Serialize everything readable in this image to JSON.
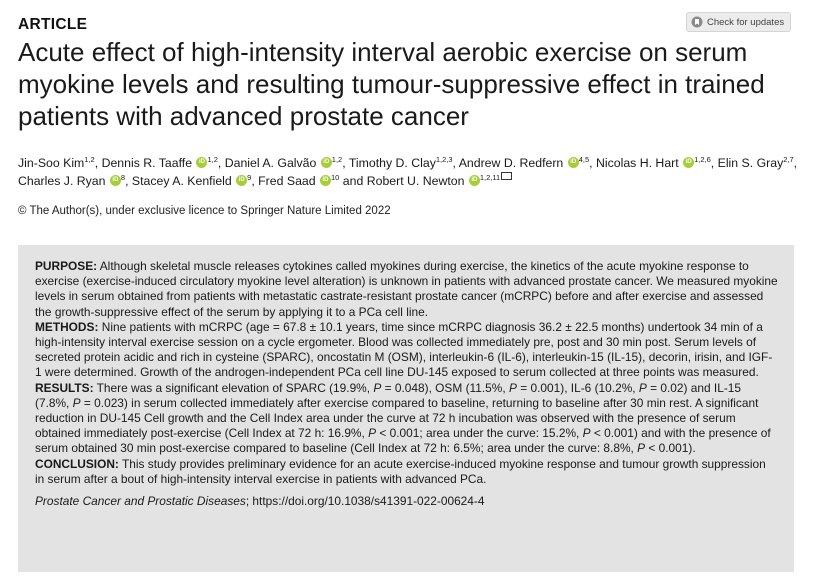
{
  "header": {
    "section_label": "ARTICLE",
    "check_updates_label": "Check for updates"
  },
  "title": "Acute effect of high-intensity interval aerobic exercise on serum myokine levels and resulting tumour-suppressive effect in trained patients with advanced prostate cancer",
  "authors": [
    {
      "name": "Jin-Soo Kim",
      "aff": "1,2",
      "orcid": false,
      "sep": ", "
    },
    {
      "name": "Dennis R. Taaffe",
      "aff": "1,2",
      "orcid": true,
      "sep": ", "
    },
    {
      "name": "Daniel A. Galvão",
      "aff": "1,2",
      "orcid": true,
      "sep": ", "
    },
    {
      "name": "Timothy D. Clay",
      "aff": "1,2,3",
      "orcid": false,
      "sep": ", "
    },
    {
      "name": "Andrew D. Redfern",
      "aff": "4,5",
      "orcid": true,
      "sep": ", "
    },
    {
      "name": "Nicolas H. Hart",
      "aff": "1,2,6",
      "orcid": true,
      "sep": ", "
    },
    {
      "name": "Elin S. Gray",
      "aff": "2,7",
      "orcid": false,
      "sep": ", "
    },
    {
      "name": "Charles J. Ryan",
      "aff": "8",
      "orcid": true,
      "sep": ", "
    },
    {
      "name": "Stacey A. Kenfield",
      "aff": "9",
      "orcid": true,
      "sep": ", "
    },
    {
      "name": "Fred Saad",
      "aff": "10",
      "orcid": true,
      "sep": " and "
    },
    {
      "name": "Robert U. Newton",
      "aff": "1,2,11",
      "orcid": true,
      "sep": ""
    }
  ],
  "copyright": "© The Author(s), under exclusive licence to Springer Nature Limited 2022",
  "abstract": {
    "purpose_label": "PURPOSE:",
    "purpose_text": " Although skeletal muscle releases cytokines called myokines during exercise, the kinetics of the acute myokine response to exercise (exercise-induced circulatory myokine level alteration) is unknown in patients with advanced prostate cancer. We measured myokine levels in serum obtained from patients with metastatic castrate-resistant prostate cancer (mCRPC) before and after exercise and assessed the growth-suppressive effect of the serum by applying it to a PCa cell line.",
    "methods_label": "METHODS:",
    "methods_text": " Nine patients with mCRPC (age = 67.8 ± 10.1 years, time since mCRPC diagnosis 36.2 ± 22.5 months) undertook 34 min of a high-intensity interval exercise session on a cycle ergometer. Blood was collected immediately pre, post and 30 min post. Serum levels of secreted protein acidic and rich in cysteine (SPARC), oncostatin M (OSM), interleukin-6 (IL-6), interleukin-15 (IL-15), decorin, irisin, and IGF-1 were determined. Growth of the androgen-independent PCa cell line DU-145 exposed to serum collected at three points was measured.",
    "results_label": "RESULTS:",
    "results_parts": [
      " There was a significant elevation of SPARC (19.9%, ",
      "P",
      " = 0.048), OSM (11.5%, ",
      "P",
      " = 0.001), IL-6 (10.2%, ",
      "P",
      " = 0.02) and IL-15 (7.8%, ",
      "P",
      " = 0.023) in serum collected immediately after exercise compared to baseline, returning to baseline after 30 min rest. A significant reduction in DU-145 Cell growth and the Cell Index area under the curve at 72 h incubation was observed with the presence of serum obtained immediately post-exercise (Cell Index at 72 h: 16.9%, ",
      "P",
      " < 0.001; area under the curve: 15.2%, ",
      "P",
      " < 0.001) and with the presence of serum obtained 30 min post-exercise compared to baseline (Cell Index at 72 h: 6.5%; area under the curve: 8.8%, ",
      "P",
      " < 0.001)."
    ],
    "conclusion_label": "CONCLUSION:",
    "conclusion_text": " This study provides preliminary evidence for an acute exercise-induced myokine response and tumour growth suppression in serum after a bout of high-intensity interval exercise in patients with advanced PCa.",
    "journal": "Prostate Cancer and Prostatic Diseases",
    "doi": "; https://doi.org/10.1038/s41391-022-00624-4"
  }
}
